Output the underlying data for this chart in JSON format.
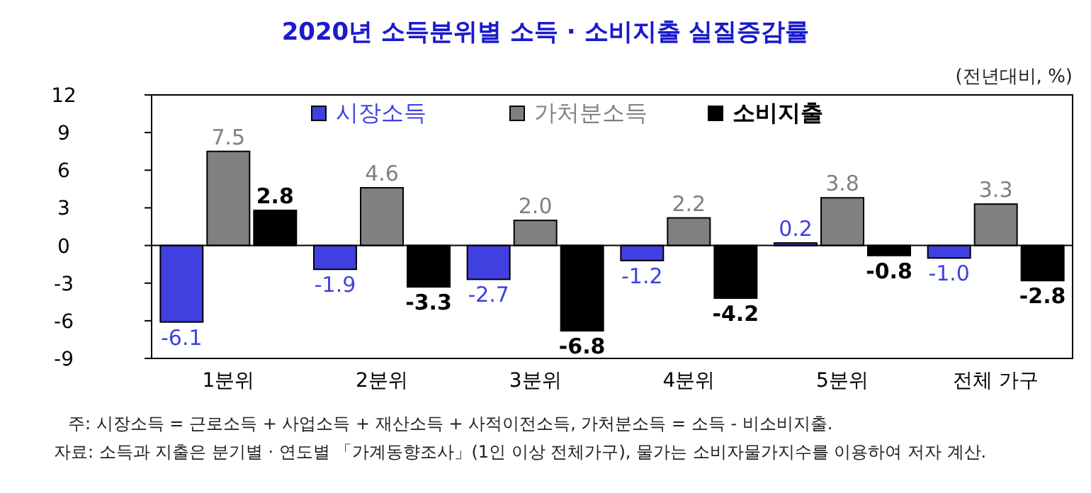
{
  "chart_data": {
    "type": "bar",
    "title": "2020년 소득분위별 소득 · 소비지출 실질증감률",
    "categories": [
      "1분위",
      "2분위",
      "3분위",
      "4분위",
      "5분위",
      "전체 가구"
    ],
    "series": [
      {
        "name": "시장소득",
        "color": "#4040e0",
        "values": [
          -6.1,
          -1.9,
          -2.7,
          -1.2,
          0.2,
          -1.0
        ],
        "value_labels": [
          "-6.1",
          "-1.9",
          "-2.7",
          "-1.2",
          "0.2",
          "-1.0"
        ]
      },
      {
        "name": "가처분소득",
        "color": "#808080",
        "values": [
          7.5,
          4.6,
          2.0,
          2.2,
          3.8,
          3.3
        ],
        "value_labels": [
          "7.5",
          "4.6",
          "2.0",
          "2.2",
          "3.8",
          "3.3"
        ]
      },
      {
        "name": "소비지출",
        "color": "#000000",
        "values": [
          2.8,
          -3.3,
          -6.8,
          -4.2,
          -0.8,
          -2.8
        ],
        "value_labels": [
          "2.8",
          "-3.3",
          "-6.8",
          "-4.2",
          "-0.8",
          "-2.8"
        ]
      }
    ],
    "ylim": [
      -9,
      12
    ],
    "yticks": [
      -9,
      -6,
      -3,
      0,
      3,
      6,
      9,
      12
    ],
    "legend": "top",
    "annotations": [
      "(전년대비, %)",
      "주: 시장소득 = 근로소득 + 사업소득 + 재산소득 + 사적이전소득, 가처분소득 = 소득 - 비소비지출.",
      "자료: 소득과 지출은 분기별 · 연도별 「가계동향조사」(1인 이상 전체가구), 물가는 소비자물가지수를 이용하여 저자 계산."
    ]
  }
}
